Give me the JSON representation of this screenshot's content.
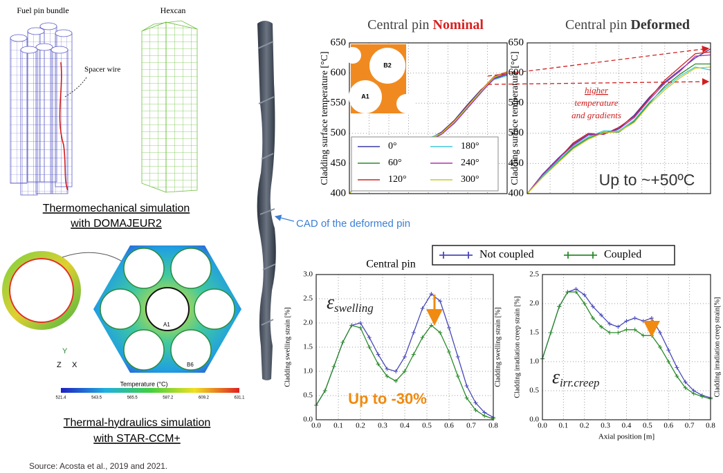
{
  "left": {
    "bundle_label": "Fuel pin bundle",
    "hexcan_label": "Hexcan",
    "spacer_label": "Spacer wire",
    "thermo_caption": [
      "Thermomechanical simulation",
      "with DOMAJEUR2"
    ],
    "hex_labels": {
      "a1": "A1",
      "b6": "B6",
      "y": "Y",
      "z": "Z",
      "x": "X"
    },
    "colorbar": {
      "title": "Temperature (°C)",
      "ticks": [
        521.4,
        543.5,
        565.5,
        587.2,
        609.2,
        631.1
      ]
    },
    "th_caption": [
      "Thermal-hydraulics simulation",
      "with STAR-CCM+"
    ]
  },
  "cad_label": "CAD of the deformed pin",
  "source": "Source: Acosta et al., 2019 and 2021.",
  "chart_data": [
    {
      "type": "line",
      "title": "Central pin",
      "title_emphasis": "Nominal",
      "ylabel": "Cladding surface temperature [°C]",
      "ylim": [
        400,
        650
      ],
      "yticks": [
        400,
        450,
        500,
        550,
        600,
        650
      ],
      "grid": true,
      "legend": "lower left",
      "inset_labels": [
        "B2",
        "A1"
      ],
      "series": [
        {
          "name": "0°",
          "color": "#3a3aa8",
          "values": [
            400,
            426,
            446,
            461,
            472,
            481,
            490,
            502,
            522,
            548,
            572,
            590,
            597
          ]
        },
        {
          "name": "60°",
          "color": "#2a8a2a",
          "values": [
            400,
            424,
            444,
            459,
            470,
            480,
            491,
            499,
            518,
            543,
            568,
            592,
            600
          ]
        },
        {
          "name": "120°",
          "color": "#d02020",
          "values": [
            400,
            425,
            447,
            462,
            469,
            479,
            489,
            501,
            521,
            546,
            571,
            594,
            602
          ]
        },
        {
          "name": "180°",
          "color": "#40c8d8",
          "values": [
            400,
            423,
            445,
            460,
            471,
            482,
            492,
            500,
            519,
            544,
            569,
            589,
            596
          ]
        },
        {
          "name": "240°",
          "color": "#b030b0",
          "values": [
            400,
            427,
            443,
            458,
            468,
            478,
            488,
            498,
            517,
            542,
            567,
            591,
            599
          ]
        },
        {
          "name": "300°",
          "color": "#c8c820",
          "values": [
            400,
            425,
            446,
            460,
            470,
            480,
            490,
            500,
            520,
            545,
            570,
            593,
            601
          ]
        }
      ]
    },
    {
      "type": "line",
      "title": "Central pin",
      "title_emphasis": "Deformed",
      "ylabel": "Cladding surface temperature [°C]",
      "ylim": [
        400,
        650
      ],
      "yticks": [
        400,
        450,
        500,
        550,
        600,
        650
      ],
      "grid": true,
      "annotations": [
        "higher",
        "temperature",
        "and gradients"
      ],
      "callout": "Up to ~+50ºC",
      "series": [
        {
          "color": "#3a3aa8",
          "values": [
            400,
            432,
            458,
            482,
            498,
            500,
            508,
            530,
            560,
            585,
            605,
            625,
            640
          ]
        },
        {
          "color": "#2a8a2a",
          "values": [
            400,
            428,
            452,
            476,
            492,
            502,
            502,
            520,
            550,
            578,
            598,
            615,
            615
          ]
        },
        {
          "color": "#d02020",
          "values": [
            400,
            430,
            456,
            484,
            500,
            498,
            510,
            528,
            558,
            588,
            610,
            632,
            635
          ]
        },
        {
          "color": "#40c8d8",
          "values": [
            400,
            429,
            454,
            478,
            494,
            504,
            504,
            522,
            552,
            575,
            595,
            610,
            605
          ]
        },
        {
          "color": "#b030b0",
          "values": [
            400,
            431,
            457,
            480,
            497,
            499,
            507,
            526,
            556,
            583,
            603,
            628,
            630
          ]
        },
        {
          "color": "#c8c820",
          "values": [
            400,
            427,
            451,
            474,
            490,
            501,
            503,
            518,
            548,
            572,
            592,
            608,
            610
          ]
        }
      ]
    },
    {
      "type": "line",
      "title": "Central pin",
      "ylabel": "Cladding swelling strain [%]",
      "ylabel_right": "Cladding swelling strain [%]",
      "x": [
        0,
        0.04,
        0.08,
        0.12,
        0.16,
        0.2,
        0.24,
        0.28,
        0.32,
        0.36,
        0.4,
        0.44,
        0.48,
        0.52,
        0.56,
        0.6,
        0.64,
        0.68,
        0.72,
        0.76,
        0.8
      ],
      "xlim": [
        0,
        0.8
      ],
      "xticks": [
        {
          "value": 0,
          "label": "0.0"
        },
        0.1,
        0.2,
        0.3,
        0.4,
        0.5,
        0.6,
        0.7,
        0.8
      ],
      "ylim": [
        0,
        3
      ],
      "yticks": [
        {
          "value": 0,
          "label": "0.0"
        },
        0.5,
        {
          "value": 1,
          "label": "1.0"
        },
        1.5,
        {
          "value": 2,
          "label": "2.0"
        },
        2.5,
        {
          "value": 3,
          "label": "3.0"
        }
      ],
      "grid": true,
      "markers": "+",
      "legend": "above",
      "symbol": {
        "base": "ε",
        "subscript": "swelling"
      },
      "callout": "Up to -30%",
      "series": [
        {
          "name": "Not coupled",
          "color": "#4848b8",
          "values": [
            0.3,
            0.6,
            1.1,
            1.6,
            1.95,
            2.0,
            1.7,
            1.35,
            1.05,
            1.0,
            1.3,
            1.8,
            2.3,
            2.6,
            2.45,
            1.9,
            1.3,
            0.7,
            0.35,
            0.15,
            0.05
          ]
        },
        {
          "name": "Coupled",
          "color": "#2a8a2a",
          "values": [
            0.3,
            0.6,
            1.1,
            1.6,
            1.95,
            1.9,
            1.5,
            1.15,
            0.9,
            0.8,
            1.0,
            1.35,
            1.7,
            1.95,
            1.8,
            1.4,
            0.9,
            0.45,
            0.2,
            0.08,
            0.02
          ]
        }
      ]
    },
    {
      "type": "line",
      "xlabel": "Axial position [m]",
      "ylabel": "Cladding irradiation creep strain [%]",
      "ylabel_right": "Cladding irradiation creep strain[%]",
      "x": [
        0,
        0.04,
        0.08,
        0.12,
        0.16,
        0.2,
        0.24,
        0.28,
        0.32,
        0.36,
        0.4,
        0.44,
        0.48,
        0.52,
        0.56,
        0.6,
        0.64,
        0.68,
        0.72,
        0.76,
        0.8
      ],
      "xlim": [
        0,
        0.8
      ],
      "xticks": [
        {
          "value": 0,
          "label": "0.0"
        },
        0.1,
        0.2,
        0.3,
        0.4,
        0.5,
        0.6,
        0.7,
        0.8
      ],
      "ylim": [
        0,
        2.5
      ],
      "yticks": [
        {
          "value": 0,
          "label": "0.0"
        },
        0.5,
        {
          "value": 1,
          "label": "1.0"
        },
        1.5,
        {
          "value": 2,
          "label": "2.0"
        },
        2.5
      ],
      "grid": true,
      "markers": "+",
      "symbol": {
        "base": "ε",
        "subscript": "irr.creep"
      },
      "series": [
        {
          "color": "#4848b8",
          "values": [
            1.05,
            1.5,
            1.95,
            2.2,
            2.25,
            2.15,
            1.95,
            1.8,
            1.65,
            1.6,
            1.7,
            1.75,
            1.7,
            1.75,
            1.5,
            1.2,
            0.9,
            0.65,
            0.5,
            0.42,
            0.38
          ]
        },
        {
          "color": "#2a8a2a",
          "values": [
            1.05,
            1.5,
            1.95,
            2.2,
            2.2,
            2.0,
            1.75,
            1.6,
            1.5,
            1.5,
            1.55,
            1.55,
            1.45,
            1.45,
            1.25,
            1.0,
            0.75,
            0.55,
            0.45,
            0.4,
            0.36
          ]
        }
      ]
    }
  ]
}
